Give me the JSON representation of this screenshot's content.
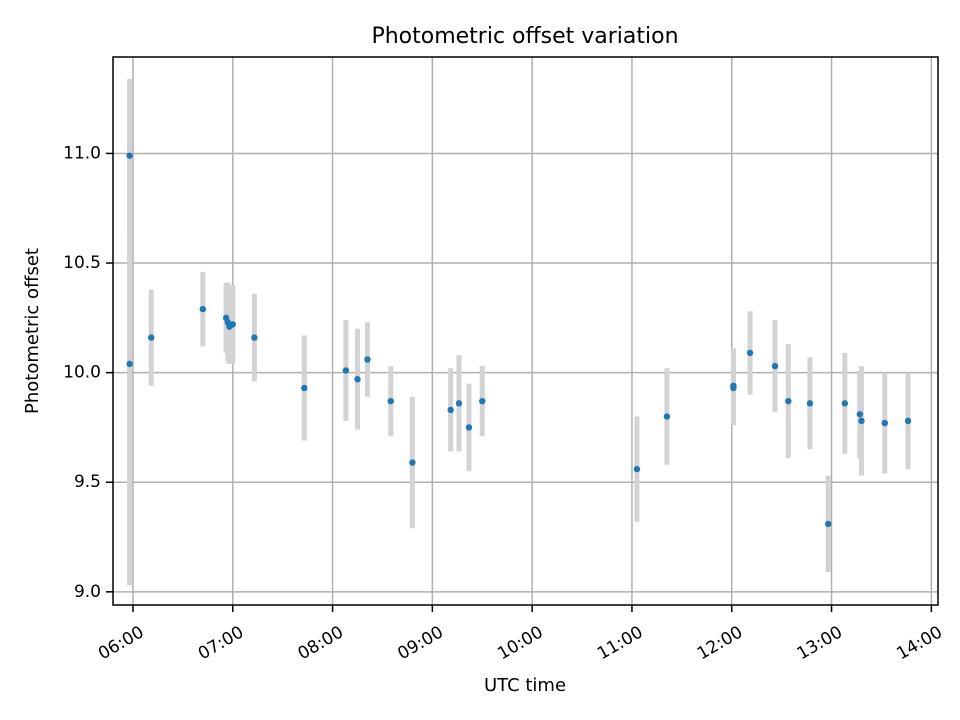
{
  "chart_data": {
    "type": "scatter",
    "title": "Photometric offset variation",
    "xlabel": "UTC time",
    "ylabel": "Photometric offset",
    "xlim": [
      "05:48",
      "14:04"
    ],
    "ylim": [
      8.94,
      11.44
    ],
    "grid": true,
    "x_ticks": [
      "06:00",
      "07:00",
      "08:00",
      "09:00",
      "10:00",
      "11:00",
      "12:00",
      "13:00",
      "14:00"
    ],
    "y_ticks": [
      "9.0",
      "9.5",
      "10.0",
      "10.5",
      "11.0"
    ],
    "point_color": "#1f77b4",
    "errorbar_color": "#d3d3d3",
    "points": [
      {
        "x": "05:58",
        "y": 10.99,
        "err": 0.35
      },
      {
        "x": "05:58",
        "y": 10.04,
        "err": 1.01
      },
      {
        "x": "06:11",
        "y": 10.16,
        "err": 0.22
      },
      {
        "x": "06:42",
        "y": 10.29,
        "err": 0.17
      },
      {
        "x": "06:56",
        "y": 10.25,
        "err": 0.16
      },
      {
        "x": "06:57",
        "y": 10.23,
        "err": 0.18
      },
      {
        "x": "06:58",
        "y": 10.21,
        "err": 0.17
      },
      {
        "x": "07:00",
        "y": 10.22,
        "err": 0.18
      },
      {
        "x": "07:13",
        "y": 10.16,
        "err": 0.2
      },
      {
        "x": "07:43",
        "y": 9.93,
        "err": 0.24
      },
      {
        "x": "08:08",
        "y": 10.01,
        "err": 0.23
      },
      {
        "x": "08:15",
        "y": 9.97,
        "err": 0.23
      },
      {
        "x": "08:21",
        "y": 10.06,
        "err": 0.17
      },
      {
        "x": "08:35",
        "y": 9.87,
        "err": 0.16
      },
      {
        "x": "08:48",
        "y": 9.59,
        "err": 0.3
      },
      {
        "x": "09:11",
        "y": 9.83,
        "err": 0.19
      },
      {
        "x": "09:16",
        "y": 9.86,
        "err": 0.22
      },
      {
        "x": "09:22",
        "y": 9.75,
        "err": 0.2
      },
      {
        "x": "09:30",
        "y": 9.87,
        "err": 0.16
      },
      {
        "x": "11:03",
        "y": 9.56,
        "err": 0.24
      },
      {
        "x": "11:21",
        "y": 9.8,
        "err": 0.22
      },
      {
        "x": "12:01",
        "y": 9.94,
        "err": 0.17
      },
      {
        "x": "12:01",
        "y": 9.93,
        "err": 0.17
      },
      {
        "x": "12:11",
        "y": 10.09,
        "err": 0.19
      },
      {
        "x": "12:26",
        "y": 10.03,
        "err": 0.21
      },
      {
        "x": "12:34",
        "y": 9.87,
        "err": 0.26
      },
      {
        "x": "12:47",
        "y": 9.86,
        "err": 0.21
      },
      {
        "x": "12:58",
        "y": 9.31,
        "err": 0.22
      },
      {
        "x": "13:08",
        "y": 9.86,
        "err": 0.23
      },
      {
        "x": "13:17",
        "y": 9.81,
        "err": 0.2
      },
      {
        "x": "13:18",
        "y": 9.78,
        "err": 0.25
      },
      {
        "x": "13:32",
        "y": 9.77,
        "err": 0.23
      },
      {
        "x": "13:46",
        "y": 9.78,
        "err": 0.22
      }
    ]
  }
}
